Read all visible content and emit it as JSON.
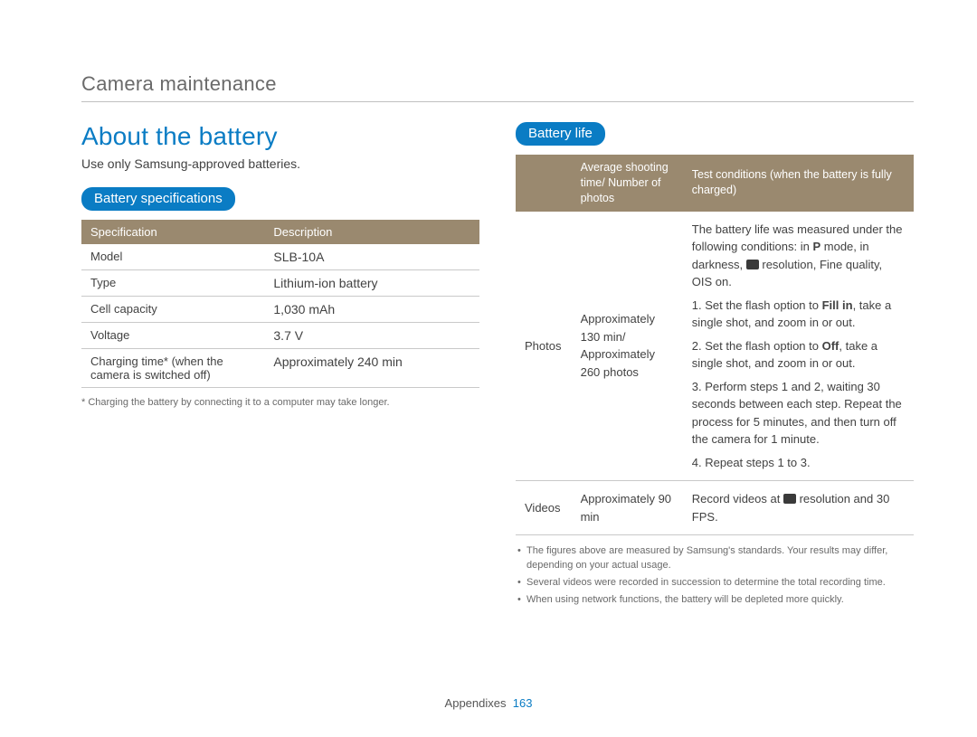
{
  "header": {
    "title": "Camera maintenance"
  },
  "left": {
    "heading": "About the battery",
    "sub": "Use only Samsung-approved batteries.",
    "pill": "Battery specifications",
    "table": {
      "head": {
        "c1": "Specification",
        "c2": "Description"
      },
      "rows": [
        {
          "c1": "Model",
          "c2": "SLB-10A"
        },
        {
          "c1": "Type",
          "c2": "Lithium-ion battery"
        },
        {
          "c1": "Cell capacity",
          "c2": "1,030 mAh"
        },
        {
          "c1": "Voltage",
          "c2": "3.7 V"
        },
        {
          "c1": "Charging time* (when the camera is switched off)",
          "c2": "Approximately 240 min"
        }
      ]
    },
    "footnote": "* Charging the battery by connecting it to a computer may take longer."
  },
  "right": {
    "pill": "Battery life",
    "table": {
      "head": {
        "c1": "",
        "c2": "Average shooting time/ Number of photos",
        "c3": "Test conditions (when the battery is fully charged)"
      },
      "rows": {
        "photos": {
          "label": "Photos",
          "value": "Approximately 130 min/ Approximately 260 photos",
          "cond_intro_a": "The battery life was measured under the following conditions: in ",
          "cond_intro_b": " mode, in darkness, ",
          "cond_intro_c": " resolution, Fine quality, OIS on.",
          "p1a": "1. Set the flash option to ",
          "p1bold": "Fill in",
          "p1b": ", take a single shot, and zoom in or out.",
          "p2a": "2. Set the flash option to ",
          "p2bold": "Off",
          "p2b": ", take a single shot, and zoom in or out.",
          "p3": "3. Perform steps 1 and 2, waiting 30 seconds between each step. Repeat the process for 5 minutes, and then turn off the camera for 1 minute.",
          "p4": "4. Repeat steps 1 to 3."
        },
        "videos": {
          "label": "Videos",
          "value": "Approximately 90 min",
          "cond_a": "Record videos at ",
          "cond_b": " resolution and 30 FPS."
        }
      }
    },
    "notes": [
      "The figures above are measured by Samsung's standards. Your results may differ, depending on your actual usage.",
      "Several videos were recorded in succession to determine the total recording time.",
      "When using network functions, the battery will be depleted more quickly."
    ]
  },
  "footer": {
    "section": "Appendixes",
    "page": "163"
  },
  "colors": {
    "accent": "#0a7cc4",
    "th_bg": "#9a896f",
    "text": "#3d3d3d",
    "muted": "#6a6a6a",
    "border": "#c9c9c9"
  }
}
